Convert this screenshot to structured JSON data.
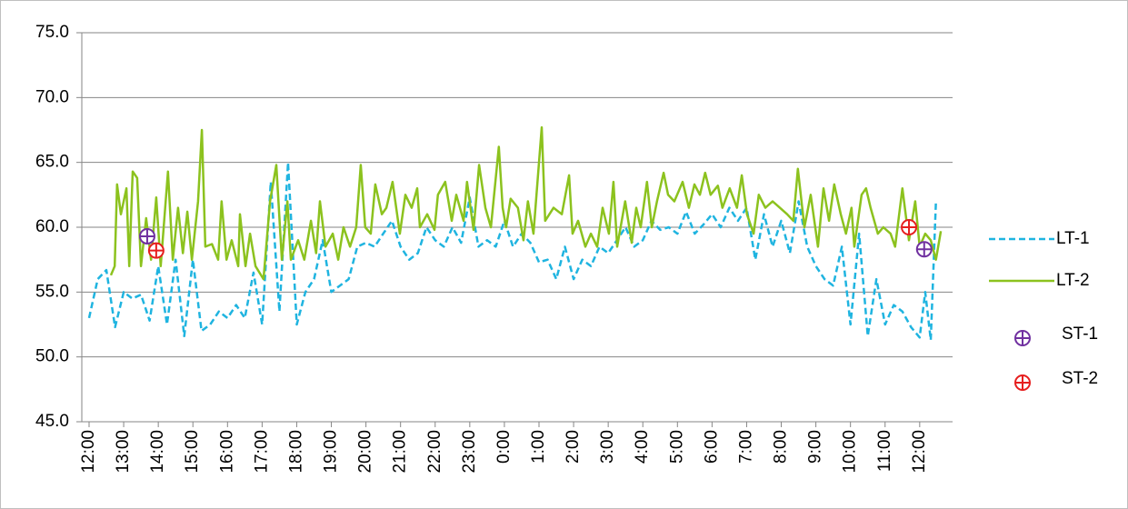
{
  "chart_data": {
    "type": "line",
    "xlim": [
      -0.21,
      24.95
    ],
    "ylim": [
      45,
      75
    ],
    "grid": true,
    "legend": "right",
    "xticks": [
      {
        "value": 0,
        "label": "12:00"
      },
      {
        "value": 1,
        "label": "13:00"
      },
      {
        "value": 2,
        "label": "14:00"
      },
      {
        "value": 3,
        "label": "15:00"
      },
      {
        "value": 4,
        "label": "16:00"
      },
      {
        "value": 5,
        "label": "17:00"
      },
      {
        "value": 6,
        "label": "18:00"
      },
      {
        "value": 7,
        "label": "19:00"
      },
      {
        "value": 8,
        "label": "20:00"
      },
      {
        "value": 9,
        "label": "21:00"
      },
      {
        "value": 10,
        "label": "22:00"
      },
      {
        "value": 11,
        "label": "23:00"
      },
      {
        "value": 12,
        "label": "0:00"
      },
      {
        "value": 13,
        "label": "1:00"
      },
      {
        "value": 14,
        "label": "2:00"
      },
      {
        "value": 15,
        "label": "3:00"
      },
      {
        "value": 16,
        "label": "4:00"
      },
      {
        "value": 17,
        "label": "5:00"
      },
      {
        "value": 18,
        "label": "6:00"
      },
      {
        "value": 19,
        "label": "7:00"
      },
      {
        "value": 20,
        "label": "8:00"
      },
      {
        "value": 21,
        "label": "9:00"
      },
      {
        "value": 22,
        "label": "10:00"
      },
      {
        "value": 23,
        "label": "11:00"
      },
      {
        "value": 24,
        "label": "12:00"
      }
    ],
    "yticks": [
      {
        "value": 45,
        "label": "45.0"
      },
      {
        "value": 50,
        "label": "50.0"
      },
      {
        "value": 55,
        "label": "55.0"
      },
      {
        "value": 60,
        "label": "60.0"
      },
      {
        "value": 65,
        "label": "65.0"
      },
      {
        "value": 70,
        "label": "70.0"
      },
      {
        "value": 75,
        "label": "75.0"
      }
    ],
    "series": [
      {
        "name": "LT-1",
        "color": "#1fb4e0",
        "mode": "line",
        "dash": true,
        "x": [
          0,
          0.25,
          0.5,
          0.75,
          1,
          1.25,
          1.5,
          1.75,
          2,
          2.25,
          2.5,
          2.75,
          3,
          3.25,
          3.5,
          3.75,
          4,
          4.25,
          4.5,
          4.75,
          5,
          5.25,
          5.5,
          5.75,
          6,
          6.25,
          6.5,
          6.75,
          7,
          7.25,
          7.5,
          7.75,
          8,
          8.25,
          8.5,
          8.75,
          9,
          9.25,
          9.5,
          9.75,
          10,
          10.25,
          10.5,
          10.75,
          11,
          11.25,
          11.5,
          11.75,
          12,
          12.25,
          12.5,
          12.75,
          13,
          13.25,
          13.5,
          13.75,
          14,
          14.25,
          14.5,
          14.75,
          15,
          15.25,
          15.5,
          15.75,
          16,
          16.25,
          16.5,
          16.75,
          17,
          17.25,
          17.5,
          17.75,
          18,
          18.25,
          18.5,
          18.75,
          19,
          19.25,
          19.5,
          19.75,
          20,
          20.25,
          20.5,
          20.75,
          21,
          21.25,
          21.5,
          21.75,
          22,
          22.25,
          22.5,
          22.75,
          23,
          23.25,
          23.5,
          23.75,
          24,
          24.16,
          24.32,
          24.47
        ],
        "values": [
          53,
          56,
          56.7,
          52.3,
          55,
          54.5,
          54.8,
          52.8,
          57,
          52.5,
          57.5,
          51.6,
          57.5,
          52,
          52.5,
          53.5,
          53,
          54,
          53,
          56.5,
          52.5,
          63.5,
          53.5,
          65,
          52.5,
          55,
          56,
          59,
          55,
          55.5,
          56,
          58.5,
          58.8,
          58.5,
          59.5,
          60.5,
          58.5,
          57.5,
          58,
          60,
          59,
          58.5,
          60,
          58.8,
          62.3,
          58.5,
          59,
          58.5,
          60.5,
          58.5,
          59.5,
          58.8,
          57.3,
          57.5,
          56,
          58.5,
          56,
          57.5,
          57,
          58.5,
          58,
          59,
          60,
          58.5,
          59,
          60.5,
          59.8,
          60,
          59.5,
          61.2,
          59.5,
          60.2,
          61,
          60,
          61.5,
          60.5,
          61.5,
          57.5,
          61,
          58.5,
          60.5,
          58,
          62,
          58.5,
          57,
          56,
          55.5,
          58.5,
          52.5,
          59.5,
          51.6,
          56,
          52.5,
          54,
          53.5,
          52.3,
          51.5,
          55,
          51.3,
          62
        ]
      },
      {
        "name": "LT-2",
        "color": "#8cc21e",
        "mode": "line",
        "dash": false,
        "x": [
          0.63,
          0.74,
          0.81,
          0.92,
          1.08,
          1.16,
          1.26,
          1.39,
          1.5,
          1.65,
          1.79,
          1.94,
          2.07,
          2.28,
          2.42,
          2.57,
          2.71,
          2.84,
          2.97,
          3.15,
          3.26,
          3.36,
          3.55,
          3.73,
          3.83,
          3.97,
          4.12,
          4.31,
          4.36,
          4.52,
          4.65,
          4.81,
          5.04,
          5.23,
          5.41,
          5.57,
          5.73,
          5.83,
          6.04,
          6.22,
          6.41,
          6.56,
          6.67,
          6.83,
          7.04,
          7.2,
          7.35,
          7.54,
          7.72,
          7.85,
          7.98,
          8.14,
          8.27,
          8.46,
          8.59,
          8.77,
          8.98,
          9.14,
          9.32,
          9.48,
          9.56,
          9.77,
          9.98,
          10.08,
          10.29,
          10.48,
          10.61,
          10.82,
          10.92,
          11.11,
          11.27,
          11.45,
          11.61,
          11.84,
          11.95,
          12.05,
          12.18,
          12.39,
          12.55,
          12.68,
          12.84,
          13.08,
          13.18,
          13.42,
          13.66,
          13.87,
          13.97,
          14.13,
          14.34,
          14.5,
          14.68,
          14.84,
          15.02,
          15.15,
          15.26,
          15.49,
          15.68,
          15.81,
          15.94,
          16.12,
          16.26,
          16.41,
          16.6,
          16.73,
          16.91,
          17.15,
          17.33,
          17.49,
          17.65,
          17.8,
          17.96,
          18.17,
          18.3,
          18.51,
          18.72,
          18.86,
          19.01,
          19.2,
          19.35,
          19.54,
          19.75,
          19.96,
          20.17,
          20.35,
          20.48,
          20.67,
          20.85,
          21.06,
          21.22,
          21.38,
          21.53,
          21.72,
          21.87,
          22.03,
          22.11,
          22.32,
          22.45,
          22.58,
          22.79,
          22.95,
          23.16,
          23.29,
          23.5,
          23.69,
          23.87,
          24,
          24.16,
          24.32,
          24.47,
          24.61
        ],
        "values": [
          56.3,
          57,
          63.3,
          61,
          63,
          57,
          64.3,
          63.8,
          57,
          60.7,
          57.5,
          62.3,
          57,
          64.3,
          57.5,
          61.5,
          58,
          61.2,
          57.5,
          62,
          67.5,
          58.5,
          58.7,
          57.5,
          62,
          57.5,
          59,
          57,
          61,
          57,
          59.5,
          57,
          56,
          62,
          64.8,
          57.5,
          62,
          57.5,
          59,
          57.5,
          60.5,
          58,
          62,
          58.5,
          59.5,
          57.5,
          60,
          58.5,
          60,
          64.8,
          60,
          59.5,
          63.3,
          61,
          61.5,
          63.5,
          59.5,
          62.5,
          61.5,
          63,
          60,
          61,
          59.8,
          62.5,
          63.5,
          60.5,
          62.5,
          60.5,
          63.5,
          59.8,
          64.8,
          61.5,
          60,
          66.2,
          61.5,
          60,
          62.2,
          61.5,
          59,
          62,
          59.5,
          67.7,
          60.5,
          61.5,
          61,
          64,
          59.5,
          60.5,
          58.5,
          59.5,
          58.5,
          61.5,
          59.5,
          63.5,
          58.5,
          62,
          58.8,
          61.5,
          60,
          63.5,
          60,
          62,
          64.2,
          62.5,
          62,
          63.5,
          61.5,
          63.3,
          62.5,
          64.2,
          62.5,
          63.2,
          61.5,
          63,
          61.5,
          64,
          61,
          59.5,
          62.5,
          61.5,
          62,
          61.5,
          61,
          60.5,
          64.5,
          60,
          62.5,
          58.5,
          63,
          60.5,
          63.3,
          61,
          59.5,
          61.5,
          58.5,
          62.5,
          63,
          61.5,
          59.5,
          60,
          59.5,
          58.5,
          63,
          59,
          62,
          58.5,
          59.5,
          59,
          57.5,
          59.7
        ]
      },
      {
        "name": "ST-1",
        "color": "#7030a0",
        "mode": "markers",
        "x": [
          1.68,
          24.13
        ],
        "values": [
          59.3,
          58.3
        ]
      },
      {
        "name": "ST-2",
        "color": "#e61e1e",
        "mode": "markers",
        "x": [
          1.94,
          23.69
        ],
        "values": [
          58.2,
          60
        ]
      }
    ]
  }
}
